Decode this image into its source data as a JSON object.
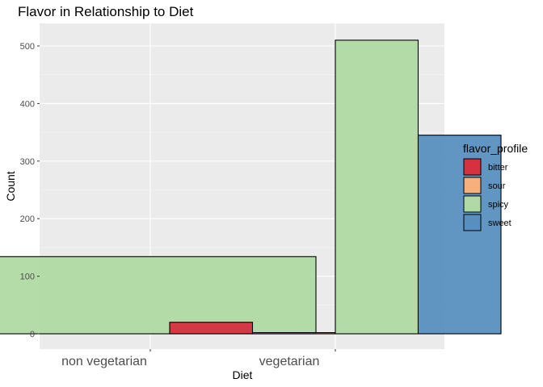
{
  "chart_data": {
    "type": "bar",
    "title": "Flavor in Relationship to Diet",
    "xlabel": "Diet",
    "ylabel": "Count",
    "categories": [
      "non vegetarian",
      "vegetarian"
    ],
    "ylim": [
      0,
      540
    ],
    "yticks": [
      0,
      100,
      200,
      300,
      400,
      500
    ],
    "grid": true,
    "legend": {
      "title": "flavor_profile",
      "position": "right"
    },
    "series": [
      {
        "name": "bitter",
        "color": "#D7303F",
        "values": [
          null,
          20
        ]
      },
      {
        "name": "sour",
        "color": "#F7AF7B",
        "values": [
          null,
          2
        ]
      },
      {
        "name": "spicy",
        "color": "#AFDAA3",
        "values": [
          134,
          510
        ]
      },
      {
        "name": "sweet",
        "color": "#588FBF",
        "values": [
          null,
          345
        ]
      }
    ]
  }
}
